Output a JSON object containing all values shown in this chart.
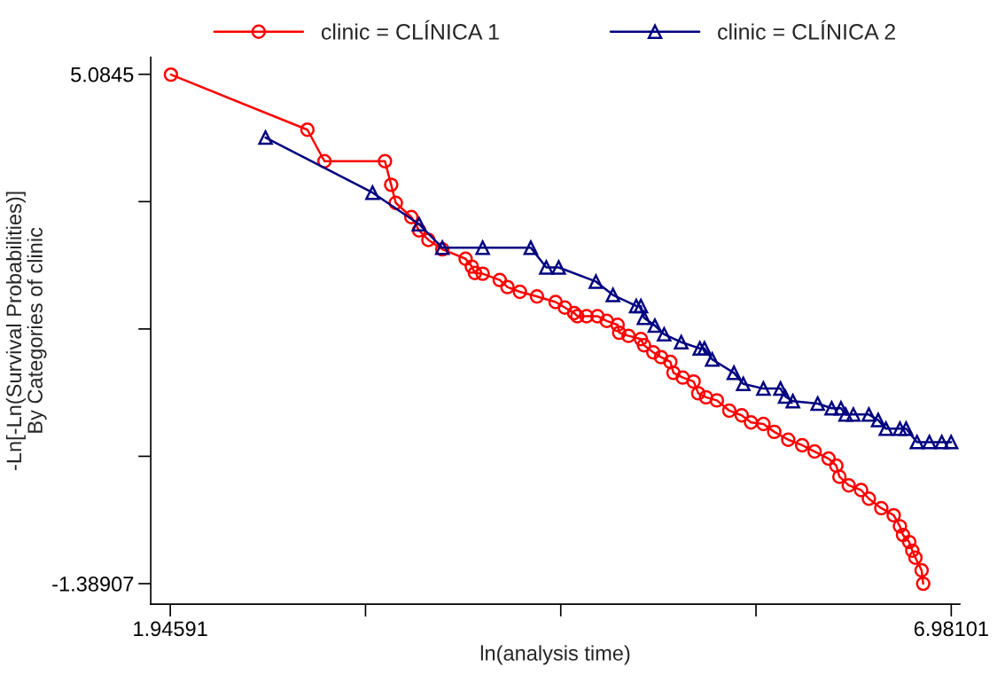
{
  "chart_data": {
    "type": "line",
    "xlabel": "ln(analysis time)",
    "ylabel": "-Ln[-Ln(Survival Probabilities)]\nBy Categories of clinic",
    "xlim": [
      1.82,
      7.036
    ],
    "ylim": [
      -1.6494,
      5.2995
    ],
    "xticks": [
      1.94591,
      {
        "value": 3.204685,
        "label": null
      },
      {
        "value": 4.46346,
        "label": null
      },
      {
        "value": 5.722235,
        "label": null
      },
      6.98101
    ],
    "yticks": [
      -1.38907,
      {
        "value": 0.22932,
        "label": null
      },
      {
        "value": 1.84772,
        "label": null
      },
      {
        "value": 3.46611,
        "label": null
      },
      5.0845
    ],
    "grid": false,
    "legend": "top",
    "line_style": "solid",
    "series": [
      {
        "name": "clinic = CLÍNICA 1",
        "color": "#ff0000",
        "marker": "circle",
        "x": [
          1.95,
          2.83,
          2.94,
          3.33,
          3.37,
          3.4,
          3.5,
          3.55,
          3.61,
          3.7,
          3.85,
          3.89,
          3.91,
          3.96,
          4.07,
          4.12,
          4.2,
          4.31,
          4.43,
          4.49,
          4.55,
          4.57,
          4.63,
          4.7,
          4.76,
          4.83,
          4.84,
          4.9,
          4.98,
          5.0,
          5.06,
          5.11,
          5.17,
          5.19,
          5.25,
          5.32,
          5.35,
          5.4,
          5.47,
          5.55,
          5.63,
          5.69,
          5.77,
          5.84,
          5.93,
          6.02,
          6.1,
          6.19,
          6.24,
          6.26,
          6.32,
          6.4,
          6.45,
          6.53,
          6.61,
          6.65,
          6.67,
          6.71,
          6.73,
          6.75,
          6.79,
          6.8
        ],
        "values": [
          5.08,
          4.38,
          3.98,
          3.98,
          3.68,
          3.45,
          3.27,
          3.1,
          2.98,
          2.86,
          2.74,
          2.64,
          2.56,
          2.55,
          2.47,
          2.38,
          2.32,
          2.26,
          2.19,
          2.12,
          2.05,
          2.01,
          2.01,
          2.01,
          1.95,
          1.9,
          1.8,
          1.76,
          1.72,
          1.64,
          1.55,
          1.49,
          1.43,
          1.29,
          1.23,
          1.18,
          1.03,
          0.98,
          0.94,
          0.81,
          0.75,
          0.66,
          0.64,
          0.54,
          0.44,
          0.37,
          0.29,
          0.2,
          0.11,
          -0.03,
          -0.14,
          -0.2,
          -0.31,
          -0.43,
          -0.52,
          -0.66,
          -0.77,
          -0.86,
          -0.97,
          -1.06,
          -1.22,
          -1.39
        ]
      },
      {
        "name": "clinic = CLÍNICA 2",
        "color": "#000080",
        "marker": "triangle",
        "x": [
          2.56,
          3.25,
          3.55,
          3.7,
          3.96,
          4.27,
          4.37,
          4.45,
          4.69,
          4.8,
          4.95,
          4.98,
          5.0,
          5.07,
          5.13,
          5.24,
          5.36,
          5.39,
          5.44,
          5.58,
          5.64,
          5.77,
          5.88,
          5.91,
          5.96,
          6.12,
          6.21,
          6.27,
          6.3,
          6.35,
          6.45,
          6.51,
          6.56,
          6.65,
          6.69,
          6.76,
          6.84,
          6.92,
          6.98
        ],
        "values": [
          4.28,
          3.58,
          3.18,
          2.88,
          2.88,
          2.88,
          2.63,
          2.63,
          2.45,
          2.28,
          2.14,
          2.14,
          1.99,
          1.89,
          1.78,
          1.68,
          1.6,
          1.6,
          1.46,
          1.29,
          1.15,
          1.09,
          1.09,
          0.99,
          0.93,
          0.9,
          0.84,
          0.84,
          0.76,
          0.76,
          0.76,
          0.69,
          0.58,
          0.58,
          0.58,
          0.41,
          0.41,
          0.41,
          0.41
        ]
      }
    ]
  }
}
